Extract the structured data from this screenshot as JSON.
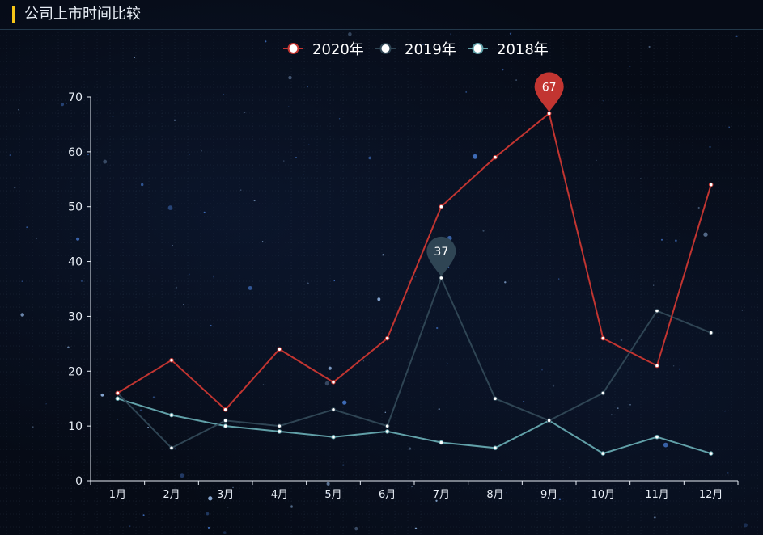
{
  "header": {
    "title": "公司上市时间比较"
  },
  "colors": {
    "s2020": "#c23531",
    "s2019": "#2f4554",
    "s2018": "#61a0a8",
    "axis": "#e8eef6",
    "accent": "#f5c518"
  },
  "chart_data": {
    "type": "line",
    "categories": [
      "1月",
      "2月",
      "3月",
      "4月",
      "5月",
      "6月",
      "7月",
      "8月",
      "9月",
      "10月",
      "11月",
      "12月"
    ],
    "ylim": [
      0,
      70
    ],
    "yticks": [
      "0",
      "10",
      "20",
      "30",
      "40",
      "50",
      "60",
      "70"
    ],
    "legend_position": "top-center",
    "series": [
      {
        "name": "2020年",
        "values": [
          16,
          22,
          13,
          24,
          18,
          26,
          50,
          59,
          67,
          26,
          21,
          54
        ]
      },
      {
        "name": "2019年",
        "values": [
          16,
          6,
          11,
          10,
          13,
          10,
          37,
          15,
          11,
          16,
          31,
          27
        ]
      },
      {
        "name": "2018年",
        "values": [
          15,
          12,
          10,
          9,
          8,
          9,
          7,
          6,
          11,
          5,
          8,
          5
        ]
      }
    ],
    "markers": [
      {
        "series": 0,
        "category": "9月",
        "value": 67,
        "label": "67"
      },
      {
        "series": 1,
        "category": "7月",
        "value": 37,
        "label": "37"
      }
    ]
  }
}
